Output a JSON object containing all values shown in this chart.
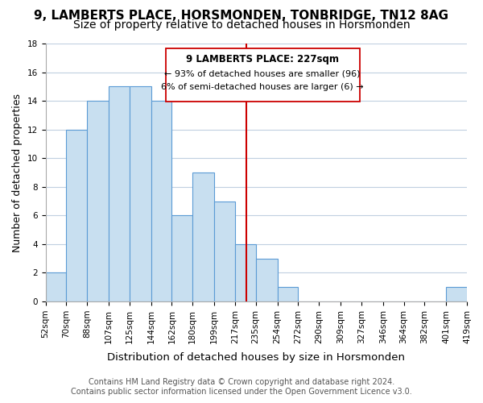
{
  "title": "9, LAMBERTS PLACE, HORSMONDEN, TONBRIDGE, TN12 8AG",
  "subtitle": "Size of property relative to detached houses in Horsmonden",
  "xlabel": "Distribution of detached houses by size in Horsmonden",
  "ylabel": "Number of detached properties",
  "bin_edges": [
    52,
    70,
    88,
    107,
    125,
    144,
    162,
    180,
    199,
    217,
    235,
    254,
    272,
    290,
    309,
    327,
    346,
    364,
    382,
    401,
    419
  ],
  "bin_labels": [
    "52sqm",
    "70sqm",
    "88sqm",
    "107sqm",
    "125sqm",
    "144sqm",
    "162sqm",
    "180sqm",
    "199sqm",
    "217sqm",
    "235sqm",
    "254sqm",
    "272sqm",
    "290sqm",
    "309sqm",
    "327sqm",
    "346sqm",
    "364sqm",
    "382sqm",
    "401sqm",
    "419sqm"
  ],
  "counts": [
    2,
    12,
    14,
    15,
    15,
    14,
    6,
    9,
    7,
    4,
    3,
    1,
    0,
    0,
    0,
    0,
    0,
    0,
    0,
    1
  ],
  "bar_color": "#c8dff0",
  "bar_edge_color": "#5b9bd5",
  "vline_x": 227,
  "vline_color": "#cc0000",
  "annotation_title": "9 LAMBERTS PLACE: 227sqm",
  "annotation_line1": "← 93% of detached houses are smaller (96)",
  "annotation_line2": "6% of semi-detached houses are larger (6) →",
  "annotation_box_color": "#ffffff",
  "annotation_box_edge": "#cc0000",
  "ylim": [
    0,
    18
  ],
  "yticks": [
    0,
    2,
    4,
    6,
    8,
    10,
    12,
    14,
    16,
    18
  ],
  "footer_line1": "Contains HM Land Registry data © Crown copyright and database right 2024.",
  "footer_line2": "Contains public sector information licensed under the Open Government Licence v3.0.",
  "title_fontsize": 11,
  "subtitle_fontsize": 10,
  "axis_label_fontsize": 9,
  "tick_fontsize": 7.5,
  "footer_fontsize": 7
}
